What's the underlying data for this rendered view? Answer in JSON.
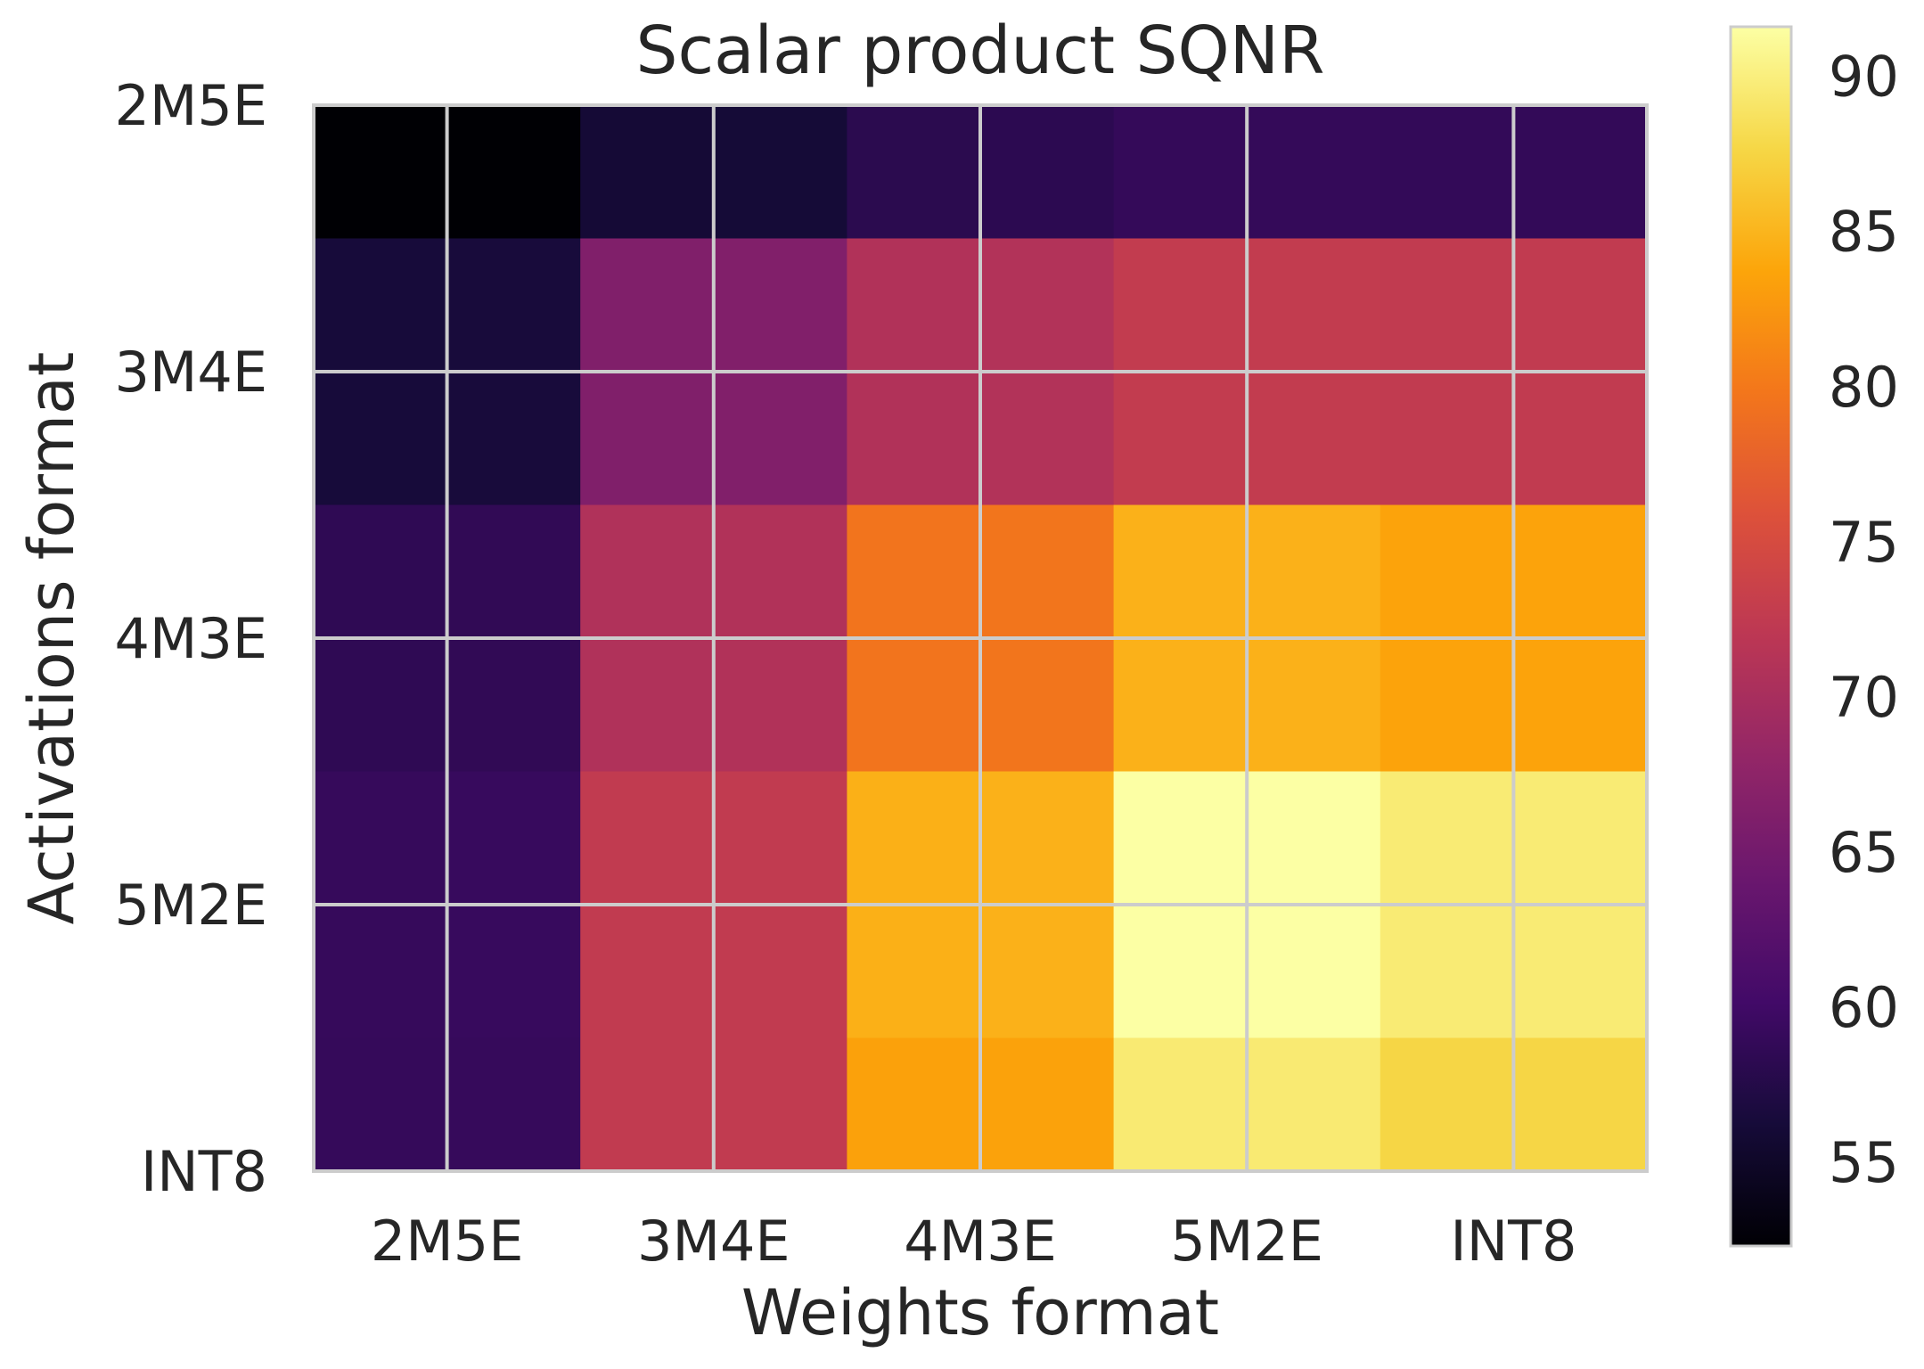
{
  "chart_data": {
    "type": "heatmap",
    "title": "Scalar product SQNR",
    "xlabel": "Weights format",
    "ylabel": "Activations format",
    "x_tick_labels": [
      "2M5E",
      "3M4E",
      "4M3E",
      "5M2E",
      "INT8"
    ],
    "y_tick_labels": [
      "2M5E",
      "3M4E",
      "4M3E",
      "5M2E",
      "INT8"
    ],
    "grid": true,
    "colormap": "inferno",
    "colorbar": {
      "ticks": [
        "55",
        "60",
        "65",
        "70",
        "75",
        "80",
        "85",
        "90"
      ],
      "tick_values": [
        55,
        60,
        65,
        70,
        75,
        80,
        85,
        90
      ],
      "range": [
        52.3,
        91.6
      ],
      "position": "right"
    },
    "values": [
      [
        52.3,
        52.3,
        56.0,
        56.1,
        58.1,
        58.2,
        58.9,
        58.9,
        58.8,
        58.8
      ],
      [
        56.3,
        56.4,
        66.2,
        66.3,
        70.9,
        71.0,
        72.7,
        72.7,
        72.6,
        72.6
      ],
      [
        56.3,
        56.4,
        66.2,
        66.3,
        70.9,
        71.0,
        72.7,
        72.7,
        72.6,
        72.6
      ],
      [
        58.5,
        58.6,
        70.8,
        70.9,
        79.6,
        79.7,
        84.7,
        84.7,
        83.6,
        83.6
      ],
      [
        58.5,
        58.6,
        70.8,
        70.9,
        79.6,
        79.7,
        84.7,
        84.7,
        83.6,
        83.6
      ],
      [
        59.1,
        59.2,
        72.6,
        72.6,
        84.6,
        84.7,
        91.6,
        91.6,
        89.6,
        89.6
      ],
      [
        59.1,
        59.2,
        72.6,
        72.6,
        84.6,
        84.7,
        91.6,
        91.6,
        89.6,
        89.6
      ],
      [
        59.0,
        59.1,
        72.5,
        72.5,
        83.4,
        83.5,
        89.5,
        89.5,
        87.6,
        87.6
      ]
    ]
  }
}
